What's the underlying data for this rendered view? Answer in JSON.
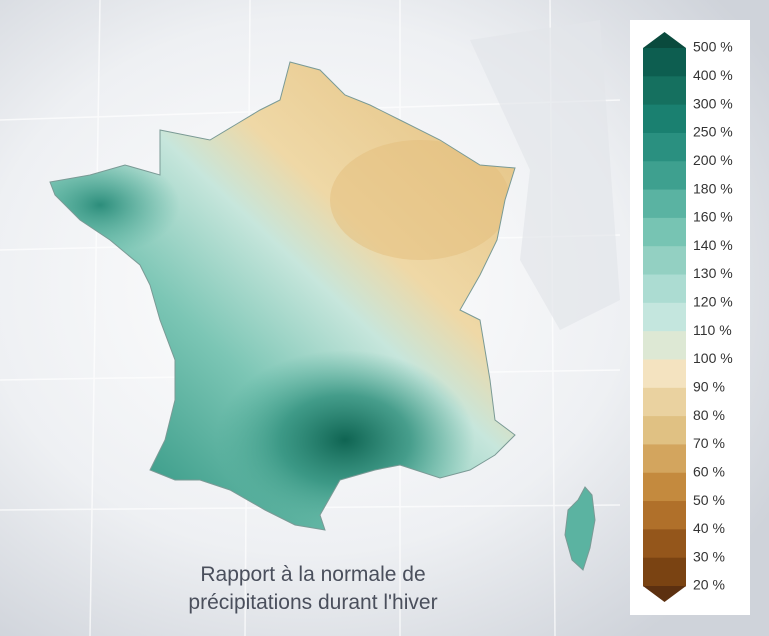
{
  "caption": {
    "lines": [
      "Rapport à la normale de",
      "précipitations durant l'hiver"
    ]
  },
  "legend": {
    "labels": [
      "500 %",
      "400 %",
      "300 %",
      "250 %",
      "200 %",
      "180 %",
      "160 %",
      "140 %",
      "130 %",
      "120 %",
      "110 %",
      "100 %",
      "90 %",
      "80 %",
      "70 %",
      "60 %",
      "50 %",
      "40 %",
      "30 %",
      "20 %"
    ],
    "colors": [
      "#0a4a3d",
      "#0d5e50",
      "#15705f",
      "#1a8070",
      "#2a9080",
      "#3ea08f",
      "#5ab3a2",
      "#77c4b3",
      "#93d0c2",
      "#acdcd2",
      "#c4e6de",
      "#dde8d4",
      "#f4e3c0",
      "#ead2a0",
      "#e0c183",
      "#d3a55e",
      "#c48a3e",
      "#b0702a",
      "#94561b",
      "#7a4312",
      "#5c3010"
    ]
  }
}
